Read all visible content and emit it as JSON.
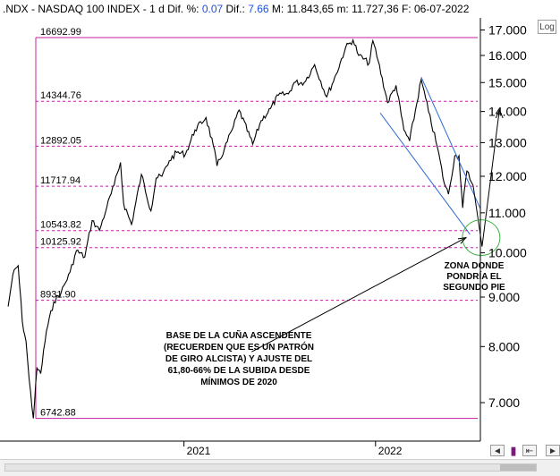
{
  "header": {
    "symbol": ".NDX",
    "name": "NASDAQ 100 INDEX",
    "timeframe": "1 d",
    "dif_pct_label": "Dif. %:",
    "dif_pct": "0.07",
    "dif_label": "Dif.:",
    "dif": "7.66",
    "max_label": "M:",
    "max": "11.843,65",
    "min_label": "m:",
    "min": "11.727,36",
    "date_label": "F:",
    "date": "06-07-2022"
  },
  "buttons": {
    "log": "Log",
    "scroll_left": "◄",
    "scroll_right": "►",
    "save": "▮",
    "nav": "⇤"
  },
  "annotations": {
    "zone": [
      "ZONA DONDE",
      "PONDRÍA EL",
      "SEGUNDO PIE"
    ],
    "wedge": [
      "BASE DE LA CUÑA ASCENDENTE",
      "(RECUERDEN QUE ES UN PATRÓN",
      "DE GIRO ALCISTA) Y AJUSTE DEL",
      "61,80-66% DE LA SUBIDA DESDE",
      "MÍNIMOS DE 2020"
    ]
  },
  "chart_data": {
    "type": "line",
    "title": "NASDAQ 100 INDEX",
    "x_ticks": [
      "2021",
      "2022"
    ],
    "y_scale": "log",
    "ylim": [
      6400,
      17400
    ],
    "y_ticks": [
      {
        "label": "17.000",
        "value": 17000
      },
      {
        "label": "16.000",
        "value": 16000
      },
      {
        "label": "15.000",
        "value": 15000
      },
      {
        "label": "14.000",
        "value": 14000
      },
      {
        "label": "13.000",
        "value": 13000
      },
      {
        "label": "12.000",
        "value": 12000
      },
      {
        "label": "11.000",
        "value": 11000
      },
      {
        "label": "10.000",
        "value": 10000
      },
      {
        "label": "9.000",
        "value": 9000
      },
      {
        "label": "8.000",
        "value": 8000
      },
      {
        "label": "7.000",
        "value": 7000
      }
    ],
    "fib_levels": [
      {
        "label": "16692.99",
        "value": 16692.99
      },
      {
        "label": "14344.76",
        "value": 14344.76
      },
      {
        "label": "12892.05",
        "value": 12892.05
      },
      {
        "label": "11717.94",
        "value": 11717.94
      },
      {
        "label": "10543.82",
        "value": 10543.82
      },
      {
        "label": "10125.92",
        "value": 10125.92
      },
      {
        "label": "8931.90",
        "value": 8931.9
      },
      {
        "label": "6742.88",
        "value": 6742.88
      }
    ],
    "series": [
      {
        "values": [
          [
            "2020-02-01",
            8800
          ],
          [
            "2020-02-10",
            9500
          ],
          [
            "2020-02-20",
            9700
          ],
          [
            "2020-02-28",
            8500
          ],
          [
            "2020-03-06",
            8100
          ],
          [
            "2020-03-12",
            7400
          ],
          [
            "2020-03-20",
            6743
          ],
          [
            "2020-03-27",
            7600
          ],
          [
            "2020-04-03",
            7500
          ],
          [
            "2020-04-14",
            8300
          ],
          [
            "2020-04-28",
            8900
          ],
          [
            "2020-05-12",
            9100
          ],
          [
            "2020-05-29",
            9550
          ],
          [
            "2020-06-10",
            10050
          ],
          [
            "2020-06-26",
            9900
          ],
          [
            "2020-07-10",
            10800
          ],
          [
            "2020-07-24",
            10550
          ],
          [
            "2020-08-07",
            11150
          ],
          [
            "2020-08-21",
            11750
          ],
          [
            "2020-09-02",
            12400
          ],
          [
            "2020-09-08",
            11250
          ],
          [
            "2020-09-23",
            10700
          ],
          [
            "2020-10-12",
            12050
          ],
          [
            "2020-10-30",
            11050
          ],
          [
            "2020-11-09",
            11950
          ],
          [
            "2020-11-20",
            12000
          ],
          [
            "2020-12-04",
            12450
          ],
          [
            "2020-12-18",
            12700
          ],
          [
            "2021-01-04",
            12650
          ],
          [
            "2021-01-22",
            13400
          ],
          [
            "2021-02-12",
            13800
          ],
          [
            "2021-02-26",
            12900
          ],
          [
            "2021-03-05",
            12300
          ],
          [
            "2021-03-19",
            12800
          ],
          [
            "2021-04-05",
            13500
          ],
          [
            "2021-04-16",
            14050
          ],
          [
            "2021-05-12",
            12950
          ],
          [
            "2021-05-28",
            13700
          ],
          [
            "2021-06-15",
            14100
          ],
          [
            "2021-06-30",
            14550
          ],
          [
            "2021-07-19",
            14600
          ],
          [
            "2021-07-30",
            15000
          ],
          [
            "2021-08-18",
            15000
          ],
          [
            "2021-09-07",
            15650
          ],
          [
            "2021-09-30",
            14500
          ],
          [
            "2021-10-18",
            15300
          ],
          [
            "2021-11-05",
            16300
          ],
          [
            "2021-11-19",
            16600
          ],
          [
            "2021-11-30",
            16000
          ],
          [
            "2021-12-20",
            15700
          ],
          [
            "2021-12-27",
            16570
          ],
          [
            "2022-01-06",
            15800
          ],
          [
            "2022-01-24",
            14300
          ],
          [
            "2022-02-09",
            14900
          ],
          [
            "2022-02-24",
            13400
          ],
          [
            "2022-03-07",
            13050
          ],
          [
            "2022-03-29",
            15100
          ],
          [
            "2022-04-12",
            14000
          ],
          [
            "2022-04-29",
            12850
          ],
          [
            "2022-05-12",
            11800
          ],
          [
            "2022-05-20",
            11500
          ],
          [
            "2022-06-01",
            12600
          ],
          [
            "2022-06-09",
            12600
          ],
          [
            "2022-06-16",
            11130
          ],
          [
            "2022-06-24",
            12150
          ],
          [
            "2022-07-06",
            11740
          ]
        ]
      }
    ],
    "channel": {
      "upper": [
        [
          "2022-03-29",
          15200
        ],
        [
          "2022-07-20",
          11100
        ]
      ],
      "lower": [
        [
          "2022-01-10",
          13950
        ],
        [
          "2022-06-30",
          10450
        ]
      ]
    },
    "projection": [
      [
        "2022-07-06",
        11740
      ],
      [
        "2022-07-23",
        10150
      ],
      [
        "2022-08-25",
        14050
      ]
    ],
    "arrow_from": [
      "2021-05-10",
      7900
    ]
  }
}
